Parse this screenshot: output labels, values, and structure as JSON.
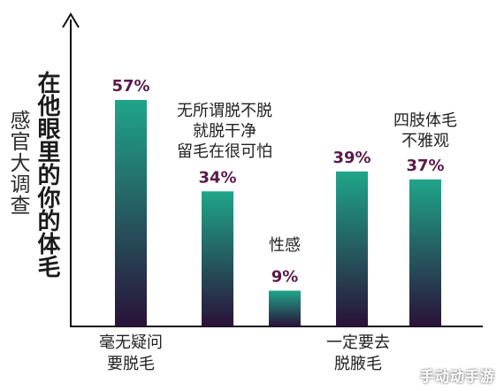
{
  "chart_data": {
    "type": "bar",
    "title": "在他眼里的你的体毛",
    "subtitle": "感官大调查",
    "xlabel": "",
    "ylabel": "",
    "ylim": [
      0,
      60
    ],
    "categories": [
      "毫无疑问要脱毛",
      "无所谓脱不脱就脱干净留毛在很可怕",
      "性感",
      "一定要去脱腋毛",
      "四肢体毛不雅观"
    ],
    "values": [
      57,
      34,
      9,
      39,
      37
    ],
    "value_labels": [
      "57%",
      "34%",
      "9%",
      "39%",
      "37%"
    ],
    "annotations": [
      {
        "bar": 1,
        "lines": [
          "无所谓脱不脱",
          "就脱干净",
          "留毛在很可怕"
        ]
      },
      {
        "bar": 2,
        "lines": [
          "性感"
        ]
      },
      {
        "bar": 4,
        "lines": [
          "四肢体毛",
          "不雅观"
        ]
      }
    ],
    "bottom_labels": [
      {
        "bar": 0,
        "lines": [
          "毫无疑问",
          "要脱毛"
        ]
      },
      {
        "bar": 3,
        "lines": [
          "一定要去",
          "脱腋毛"
        ]
      }
    ],
    "colors": {
      "bar_top": "#1fa58a",
      "bar_bottom": "#2a1238",
      "value_text": "#5b1a4a",
      "axis": "#111111"
    },
    "grid": false,
    "legend": "none"
  },
  "watermark": "手动动手游"
}
